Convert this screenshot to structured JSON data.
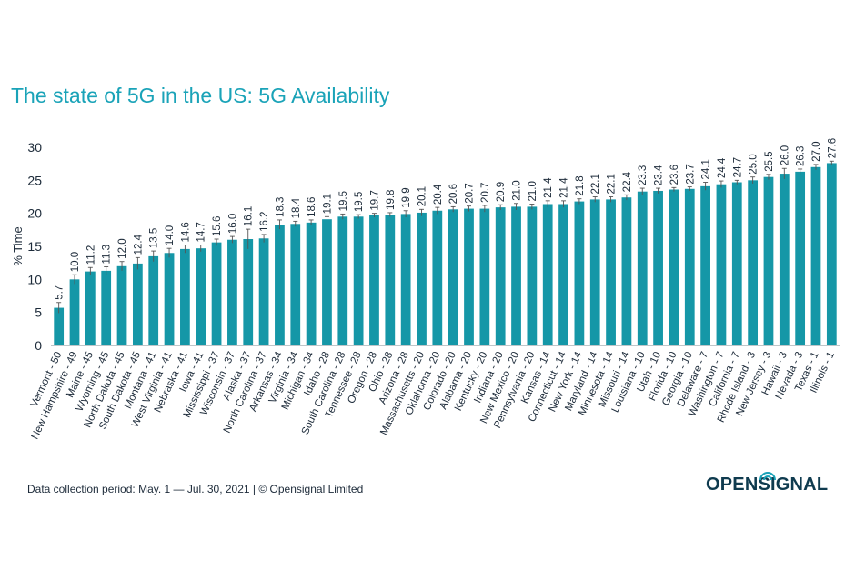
{
  "title": "The state of 5G in the US: 5G Availability",
  "footer": "Data collection period: May. 1 — Jul. 30, 2021 | © Opensignal Limited",
  "logo_text": "OPENSIGNAL",
  "colors": {
    "bar": "#1597a7",
    "title": "#1aa3b8",
    "text": "#1d2b3a",
    "logo": "#0f3b4f"
  },
  "chart_data": {
    "type": "bar",
    "title": "The state of 5G in the US: 5G Availability",
    "ylabel": "% Time",
    "xlabel": "",
    "ylim": [
      0,
      30
    ],
    "yticks": [
      0,
      5,
      10,
      15,
      20,
      25,
      30
    ],
    "grid": false,
    "error_bars": true,
    "categories": [
      "Vermont - 50",
      "New Hampshire - 49",
      "Maine - 45",
      "Wyoming - 45",
      "North Dakota - 45",
      "South Dakota - 45",
      "Montana - 41",
      "West Virginia - 41",
      "Nebraska - 41",
      "Iowa - 41",
      "Mississippi - 37",
      "Wisconsin - 37",
      "Alaska - 37",
      "North Carolina - 37",
      "Arkansas - 34",
      "Virginia - 34",
      "Michigan - 34",
      "Idaho - 28",
      "South Carolina - 28",
      "Tennessee - 28",
      "Oregon - 28",
      "Ohio - 28",
      "Arizona - 28",
      "Massachusetts - 20",
      "Oklahoma - 20",
      "Colorado - 20",
      "Alabama - 20",
      "Kentucky - 20",
      "Indiana - 20",
      "New Mexico - 20",
      "Pennsylvania - 20",
      "Kansas - 14",
      "Connecticut - 14",
      "New York - 14",
      "Maryland - 14",
      "Minnesota - 14",
      "Missouri - 14",
      "Louisiana - 10",
      "Utah - 10",
      "Florida - 10",
      "Georgia - 10",
      "Delaware - 7",
      "Washington - 7",
      "California - 7",
      "Rhode Island - 3",
      "New Jersey - 3",
      "Hawaii - 3",
      "Nevada - 3",
      "Texas - 1",
      "Illinois - 1"
    ],
    "values": [
      5.7,
      10.0,
      11.2,
      11.3,
      12.0,
      12.4,
      13.5,
      14.0,
      14.6,
      14.7,
      15.6,
      16.0,
      16.1,
      16.2,
      18.3,
      18.4,
      18.6,
      19.1,
      19.5,
      19.5,
      19.7,
      19.8,
      19.9,
      20.1,
      20.4,
      20.6,
      20.7,
      20.7,
      20.9,
      21.0,
      21.0,
      21.4,
      21.4,
      21.8,
      22.1,
      22.1,
      22.4,
      23.3,
      23.4,
      23.6,
      23.7,
      24.1,
      24.4,
      24.7,
      25.0,
      25.5,
      26.0,
      26.3,
      27.0,
      27.6
    ],
    "value_labels": [
      "5.7",
      "10.0",
      "11.2",
      "11.3",
      "12.0",
      "12.4",
      "13.5",
      "14.0",
      "14.6",
      "14.7",
      "15.6",
      "16.0",
      "16.1",
      "16.2",
      "18.3",
      "18.4",
      "18.6",
      "19.1",
      "19.5",
      "19.5",
      "19.7",
      "19.8",
      "19.9",
      "20.1",
      "20.4",
      "20.6",
      "20.7",
      "20.7",
      "20.9",
      "21.0",
      "21.0",
      "21.4",
      "21.4",
      "21.8",
      "22.1",
      "22.1",
      "22.4",
      "23.3",
      "23.4",
      "23.6",
      "23.7",
      "24.1",
      "24.4",
      "24.7",
      "25.0",
      "25.5",
      "26.0",
      "26.3",
      "27.0",
      "27.6"
    ],
    "errors": [
      0.8,
      0.7,
      0.6,
      0.6,
      0.7,
      0.9,
      0.8,
      0.7,
      0.6,
      0.5,
      0.5,
      0.5,
      1.5,
      0.6,
      0.7,
      0.4,
      0.4,
      0.4,
      0.4,
      0.3,
      0.3,
      0.3,
      0.5,
      0.5,
      0.5,
      0.4,
      0.4,
      0.5,
      0.4,
      0.5,
      0.4,
      0.5,
      0.5,
      0.4,
      0.4,
      0.4,
      0.4,
      0.5,
      0.4,
      0.3,
      0.3,
      0.6,
      0.5,
      0.3,
      0.5,
      0.4,
      0.8,
      0.4,
      0.4,
      0.3
    ]
  }
}
